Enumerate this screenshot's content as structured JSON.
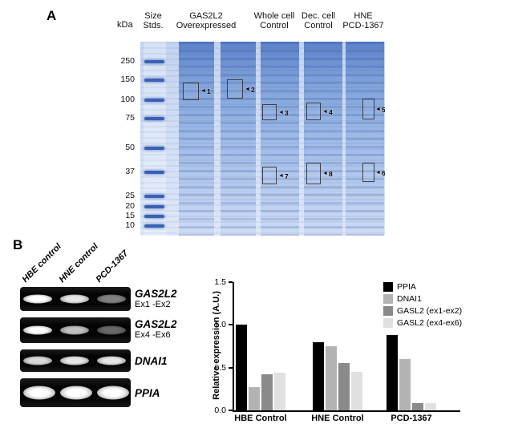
{
  "figure": {
    "panel_a_label": "A",
    "panel_b_label": "B"
  },
  "panelA": {
    "kda_label": "kDa",
    "size_stds": [
      "Size",
      "Stds."
    ],
    "lane_headers": [
      [
        "GAS2L2",
        "Overexpressed"
      ],
      [
        "Whole cell",
        "Control"
      ],
      [
        "Dec. cell",
        "Control"
      ],
      [
        "HNE",
        "PCD-1367"
      ]
    ],
    "mw_markers": [
      "250",
      "150",
      "100",
      "75",
      "50",
      "37",
      "25",
      "20",
      "15",
      "10"
    ],
    "annotations": [
      "1",
      "2",
      "3",
      "4",
      "5",
      "6",
      "7",
      "8"
    ]
  },
  "panelB": {
    "sample_labels": [
      "HBE control",
      "HNE control",
      "PCD-1367"
    ],
    "blots": [
      {
        "gene": "GAS2L2",
        "exons": "Ex1 -Ex2",
        "bands": [
          1.0,
          0.9,
          0.5
        ]
      },
      {
        "gene": "GAS2L2",
        "exons": "Ex4 -Ex6",
        "bands": [
          1.0,
          0.75,
          0.4
        ]
      },
      {
        "gene": "DNAI1",
        "exons": "",
        "bands": [
          0.85,
          0.9,
          0.9
        ]
      },
      {
        "gene": "PPIA",
        "exons": "",
        "bands": [
          1.0,
          1.0,
          1.0
        ]
      }
    ]
  },
  "chart_data": {
    "type": "bar",
    "categories": [
      "HBE Control",
      "HNE Control",
      "PCD-1367"
    ],
    "series": [
      {
        "name": "PPIA",
        "color": "#000000",
        "values": [
          1.0,
          0.8,
          0.88
        ]
      },
      {
        "name": "DNAI1",
        "color": "#b3b3b3",
        "values": [
          0.27,
          0.75,
          0.6
        ]
      },
      {
        "name": "GASL2 (ex1-ex2)",
        "color": "#8a8a8a",
        "values": [
          0.42,
          0.55,
          0.08
        ]
      },
      {
        "name": "GASL2 (ex4-ex6)",
        "color": "#e0e0e0",
        "values": [
          0.44,
          0.45,
          0.08
        ]
      }
    ],
    "ylabel": "Relative expression (A.U.)",
    "ylim": [
      0,
      1.5
    ],
    "yticks": [
      "0.0",
      "0.5",
      "1.0",
      "1.5"
    ],
    "legend_position": "upper-right",
    "grid": false
  }
}
